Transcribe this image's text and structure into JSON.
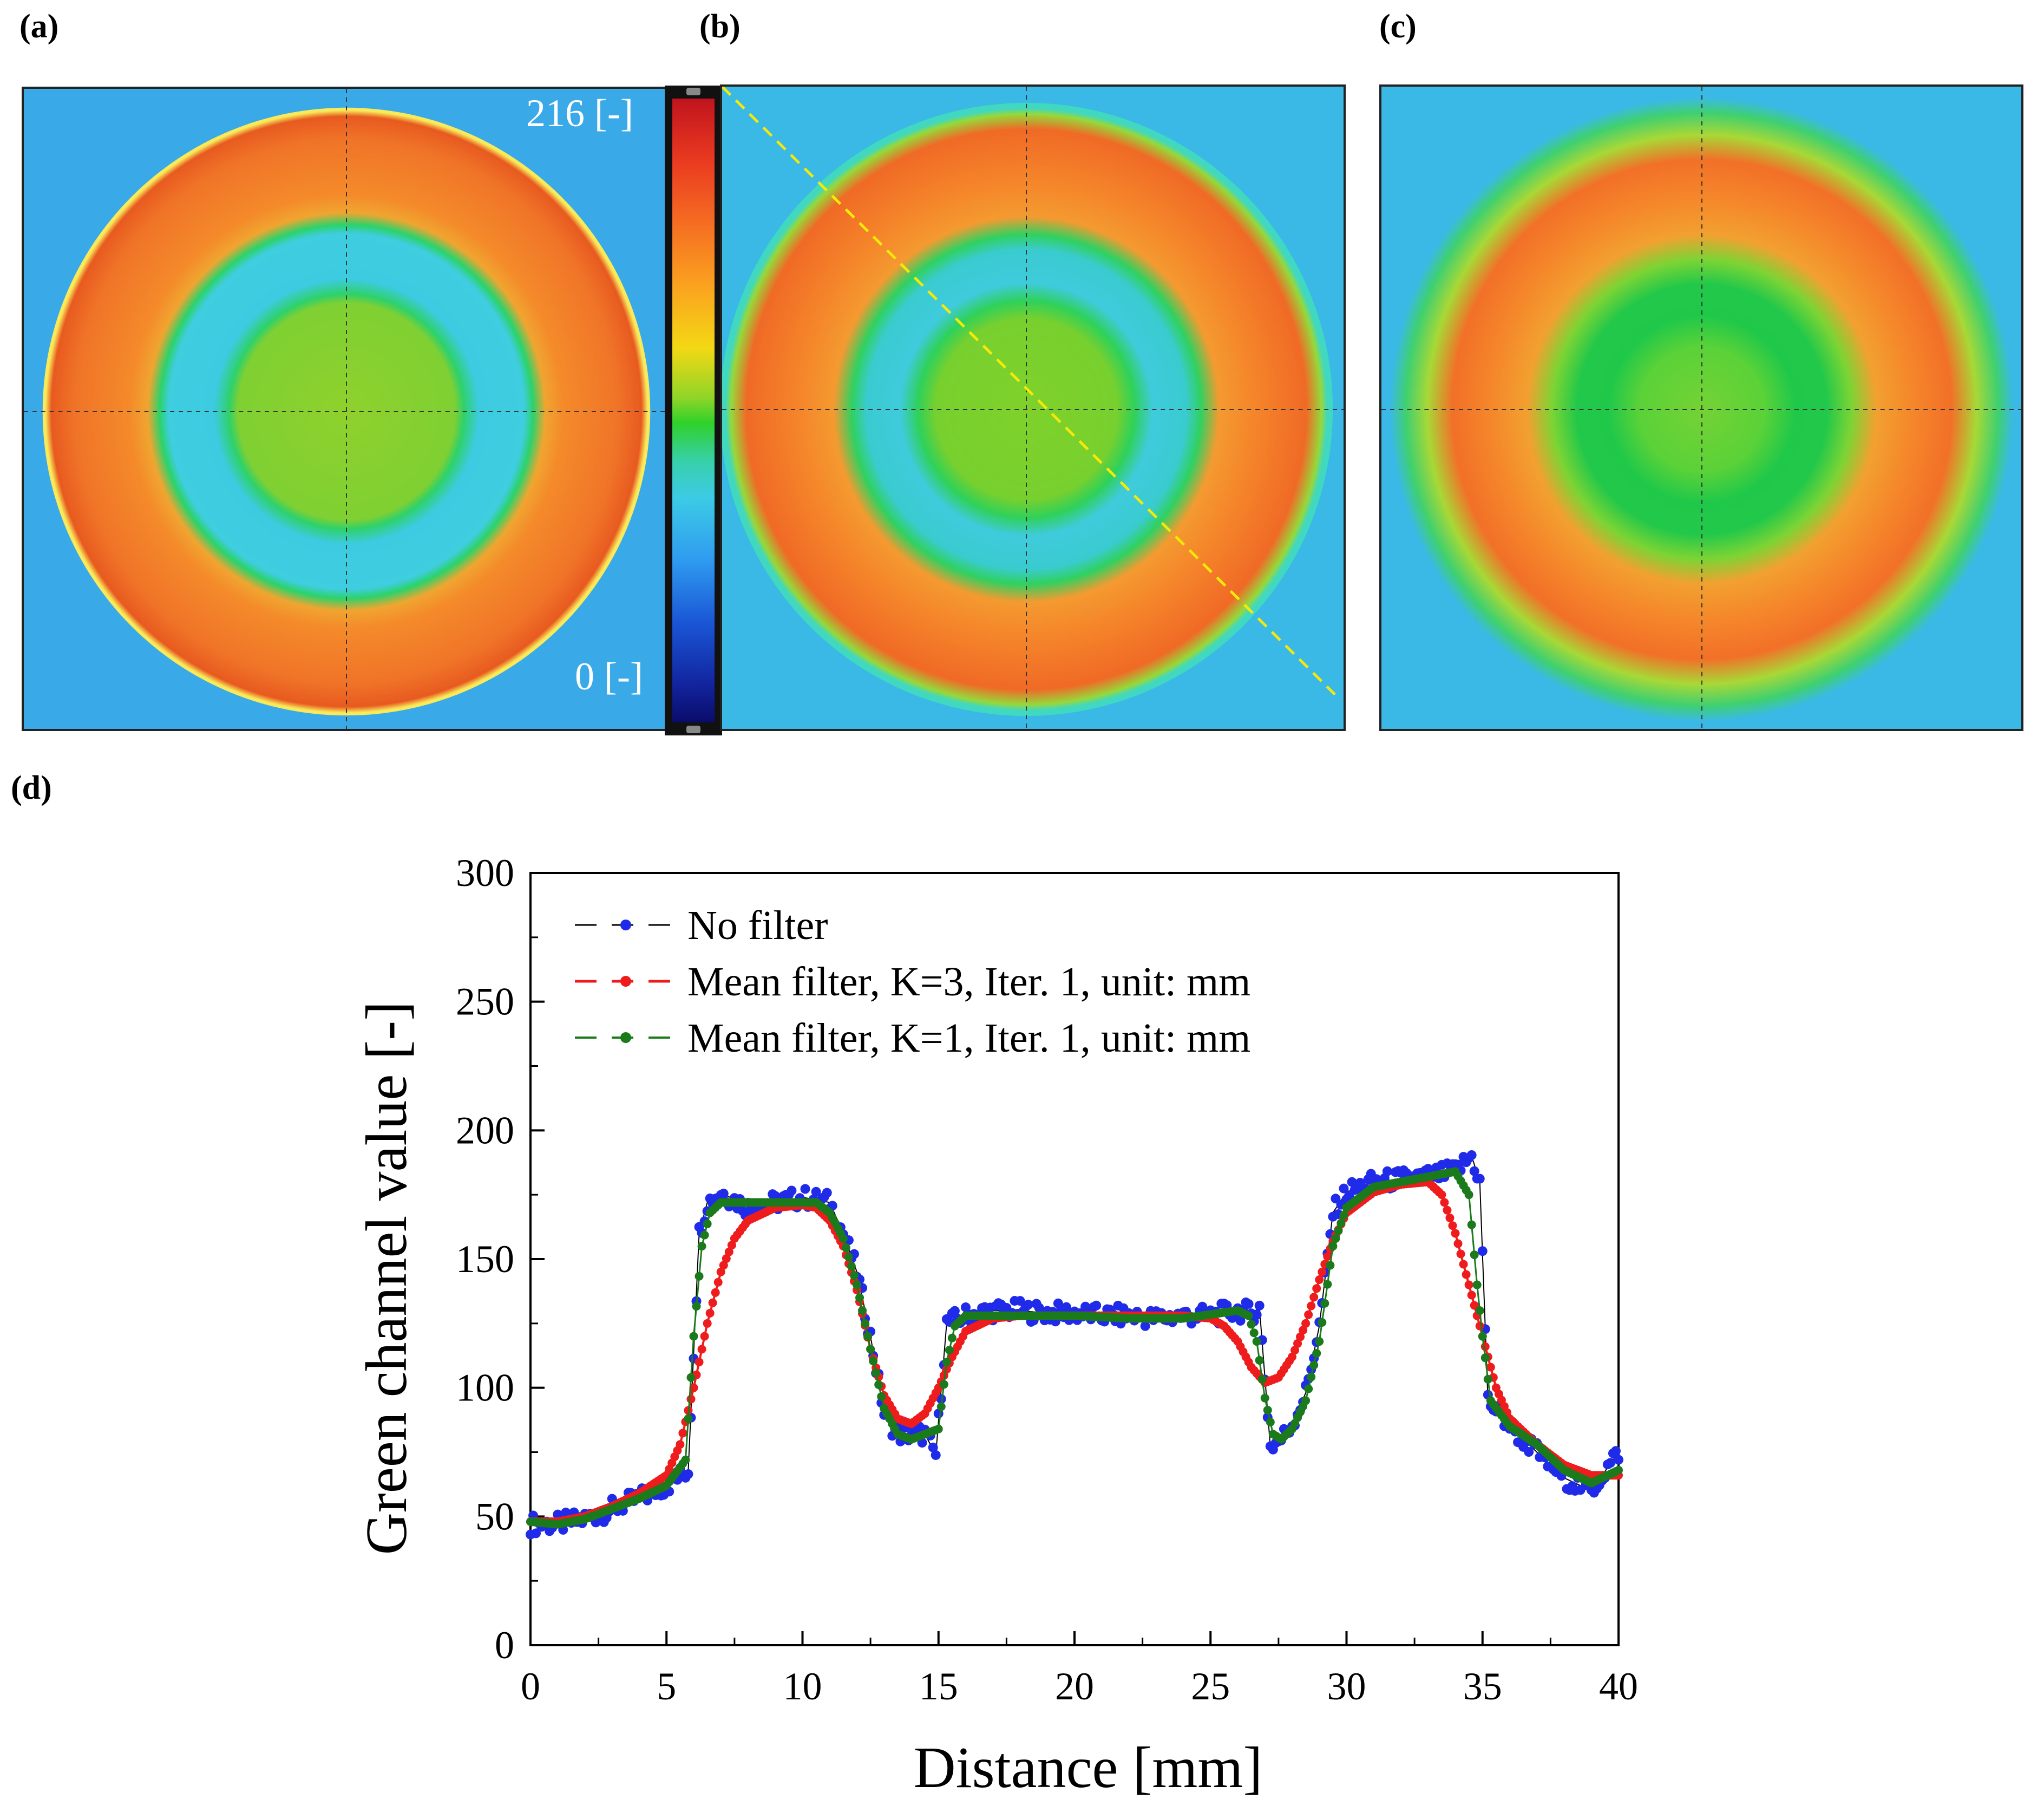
{
  "panels": {
    "a_label": "(a)",
    "b_label": "(b)",
    "c_label": "(c)",
    "d_label": "(d)"
  },
  "colorbar": {
    "max_label": "216 [-]",
    "min_label": "0 [-]"
  },
  "colors": {
    "no_filter_line": "#000000",
    "no_filter_markers": "#1f2be8",
    "k3_series": "#ee1c1c",
    "k1_series": "#1b7a1b",
    "diagonal_line": "#f5e90a"
  },
  "chart_data": {
    "type": "line",
    "title": "",
    "xlabel": "Distance [mm]",
    "ylabel": "Green channel value [-]",
    "xlim": [
      0,
      40
    ],
    "ylim": [
      0,
      300
    ],
    "xticks": [
      0,
      5,
      10,
      15,
      20,
      25,
      30,
      35,
      40
    ],
    "yticks": [
      0,
      50,
      100,
      150,
      200,
      250,
      300
    ],
    "legend_position": "top-left",
    "series": [
      {
        "name": "No filter",
        "x": [
          0,
          1,
          2,
          3,
          4,
          5,
          5.8,
          6.2,
          6.5,
          7,
          8,
          9,
          10,
          10.5,
          11,
          11.5,
          12,
          12.5,
          13,
          13.5,
          14,
          14.5,
          14.9,
          15.3,
          16,
          17,
          18,
          19,
          20,
          21,
          22,
          23,
          24,
          25,
          26,
          26.5,
          26.8,
          27.2,
          27.6,
          28,
          28.5,
          29,
          29.5,
          30,
          31,
          32,
          33,
          34,
          34.6,
          34.9,
          35.2,
          36,
          37,
          38,
          39,
          40
        ],
        "y": [
          47,
          47,
          49,
          53,
          57,
          62,
          68,
          160,
          172,
          176,
          170,
          172,
          174,
          173,
          172,
          160,
          145,
          120,
          90,
          82,
          82,
          82,
          74,
          125,
          128,
          130,
          130,
          129,
          129,
          128,
          128,
          127,
          128,
          128,
          130,
          129,
          131,
          77,
          80,
          86,
          98,
          124,
          168,
          176,
          180,
          181,
          182,
          184,
          190,
          180,
          95,
          85,
          75,
          65,
          60,
          75
        ]
      },
      {
        "name": "Mean filter, K=3, Iter. 1, unit: mm",
        "x": [
          0,
          1,
          2,
          3,
          4,
          5,
          5.5,
          6,
          6.5,
          7,
          7.5,
          8,
          9,
          10,
          10.5,
          11,
          11.5,
          12,
          12.5,
          13,
          13.5,
          14,
          14.5,
          15,
          15.5,
          16,
          17,
          18,
          20,
          22,
          24,
          25,
          25.5,
          26,
          26.5,
          27,
          27.5,
          28,
          28.5,
          29,
          29.5,
          30,
          31,
          32,
          33,
          33.5,
          34,
          34.5,
          35,
          35.5,
          36,
          37,
          38,
          39,
          40
        ],
        "y": [
          48,
          48,
          50,
          54,
          59,
          66,
          78,
          100,
          125,
          145,
          158,
          165,
          170,
          171,
          170,
          165,
          155,
          138,
          115,
          97,
          88,
          86,
          90,
          100,
          112,
          122,
          127,
          128,
          128,
          128,
          128,
          127,
          124,
          118,
          108,
          102,
          104,
          112,
          125,
          142,
          157,
          168,
          176,
          179,
          180,
          175,
          160,
          140,
          120,
          100,
          88,
          78,
          70,
          66,
          66
        ]
      },
      {
        "name": "Mean filter, K=1, Iter. 1, unit: mm",
        "x": [
          0,
          1,
          2,
          3,
          4,
          5,
          5.7,
          6,
          6.3,
          6.6,
          7,
          8,
          9,
          10,
          10.5,
          11,
          11.5,
          12,
          12.5,
          13,
          13.5,
          14,
          14.5,
          15,
          15.3,
          15.6,
          16,
          17,
          18,
          20,
          22,
          24,
          26,
          26.4,
          26.7,
          27,
          27.3,
          27.6,
          28,
          28.5,
          29,
          29.5,
          30,
          31,
          32,
          33,
          34,
          34.5,
          34.8,
          35,
          35.3,
          36,
          37,
          38,
          39,
          40
        ],
        "y": [
          48,
          47,
          49,
          53,
          57,
          62,
          72,
          120,
          155,
          168,
          172,
          172,
          172,
          172,
          172,
          168,
          158,
          140,
          115,
          92,
          82,
          80,
          82,
          84,
          110,
          124,
          128,
          128,
          128,
          128,
          127,
          127,
          130,
          128,
          118,
          96,
          82,
          80,
          84,
          95,
          118,
          155,
          170,
          178,
          180,
          182,
          184,
          175,
          140,
          120,
          95,
          85,
          78,
          68,
          63,
          68
        ]
      }
    ]
  }
}
